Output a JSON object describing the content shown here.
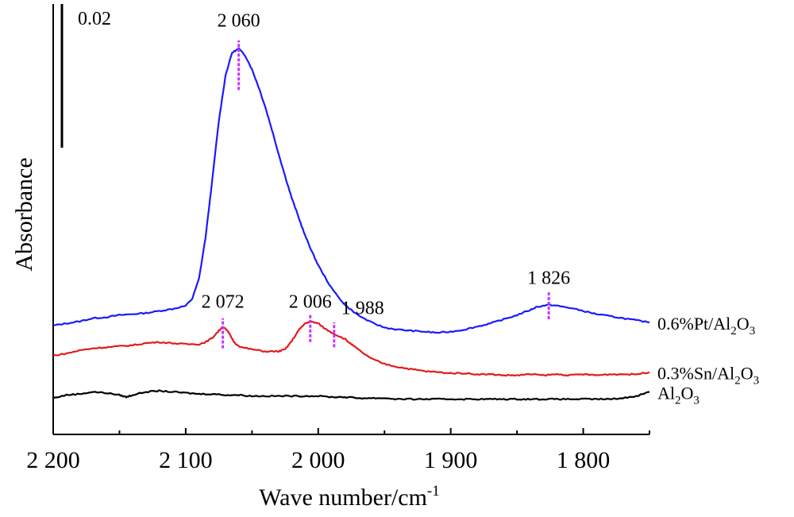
{
  "chart_data": {
    "type": "line",
    "xlabel": "Wave number/cm",
    "xlabel_sup": "-1",
    "ylabel": "Absorbance",
    "xlim": [
      2200,
      1750
    ],
    "x_reversed": true,
    "x_ticks": [
      2200,
      2100,
      2000,
      1900,
      1800
    ],
    "x_tick_labels": [
      "2 200",
      "2 100",
      "2 000",
      "1 900",
      "1 800"
    ],
    "scale_bar_label": "0.02",
    "legend_placement": "right-inline",
    "series": [
      {
        "name_parts": [
          "0.6%Pt/Al",
          "2",
          "O",
          "3"
        ],
        "color": "#1a1aff",
        "points": [
          [
            2200,
            0.075
          ],
          [
            2190,
            0.077
          ],
          [
            2180,
            0.079
          ],
          [
            2170,
            0.082
          ],
          [
            2160,
            0.083
          ],
          [
            2150,
            0.085
          ],
          [
            2140,
            0.086
          ],
          [
            2130,
            0.087
          ],
          [
            2120,
            0.089
          ],
          [
            2110,
            0.091
          ],
          [
            2100,
            0.094
          ],
          [
            2095,
            0.101
          ],
          [
            2090,
            0.12
          ],
          [
            2085,
            0.16
          ],
          [
            2080,
            0.215
          ],
          [
            2075,
            0.272
          ],
          [
            2070,
            0.316
          ],
          [
            2065,
            0.338
          ],
          [
            2060,
            0.342
          ],
          [
            2055,
            0.335
          ],
          [
            2050,
            0.322
          ],
          [
            2045,
            0.305
          ],
          [
            2040,
            0.286
          ],
          [
            2035,
            0.264
          ],
          [
            2030,
            0.241
          ],
          [
            2025,
            0.219
          ],
          [
            2020,
            0.198
          ],
          [
            2015,
            0.18
          ],
          [
            2010,
            0.162
          ],
          [
            2005,
            0.147
          ],
          [
            2000,
            0.133
          ],
          [
            1990,
            0.111
          ],
          [
            1980,
            0.095
          ],
          [
            1970,
            0.085
          ],
          [
            1960,
            0.078
          ],
          [
            1950,
            0.073
          ],
          [
            1940,
            0.071
          ],
          [
            1930,
            0.07
          ],
          [
            1920,
            0.069
          ],
          [
            1910,
            0.068
          ],
          [
            1900,
            0.069
          ],
          [
            1890,
            0.071
          ],
          [
            1880,
            0.074
          ],
          [
            1870,
            0.077
          ],
          [
            1860,
            0.081
          ],
          [
            1850,
            0.085
          ],
          [
            1840,
            0.09
          ],
          [
            1835,
            0.093
          ],
          [
            1826,
            0.095
          ],
          [
            1820,
            0.094
          ],
          [
            1810,
            0.092
          ],
          [
            1800,
            0.089
          ],
          [
            1790,
            0.086
          ],
          [
            1780,
            0.084
          ],
          [
            1770,
            0.082
          ],
          [
            1760,
            0.08
          ],
          [
            1750,
            0.078
          ]
        ]
      },
      {
        "name_parts": [
          "0.3%Sn/Al",
          "2",
          "O",
          "3"
        ],
        "color": "#e31a1c",
        "points": [
          [
            2200,
            0.046
          ],
          [
            2190,
            0.048
          ],
          [
            2180,
            0.051
          ],
          [
            2170,
            0.053
          ],
          [
            2160,
            0.054
          ],
          [
            2150,
            0.055
          ],
          [
            2140,
            0.056
          ],
          [
            2130,
            0.058
          ],
          [
            2120,
            0.059
          ],
          [
            2110,
            0.058
          ],
          [
            2100,
            0.057
          ],
          [
            2090,
            0.057
          ],
          [
            2085,
            0.059
          ],
          [
            2080,
            0.063
          ],
          [
            2075,
            0.07
          ],
          [
            2072,
            0.074
          ],
          [
            2068,
            0.069
          ],
          [
            2063,
            0.058
          ],
          [
            2058,
            0.054
          ],
          [
            2050,
            0.052
          ],
          [
            2040,
            0.05
          ],
          [
            2030,
            0.05
          ],
          [
            2025,
            0.052
          ],
          [
            2020,
            0.06
          ],
          [
            2015,
            0.07
          ],
          [
            2010,
            0.077
          ],
          [
            2006,
            0.079
          ],
          [
            2000,
            0.077
          ],
          [
            1995,
            0.072
          ],
          [
            1988,
            0.067
          ],
          [
            1980,
            0.062
          ],
          [
            1975,
            0.057
          ],
          [
            1970,
            0.052
          ],
          [
            1960,
            0.043
          ],
          [
            1950,
            0.038
          ],
          [
            1940,
            0.035
          ],
          [
            1930,
            0.033
          ],
          [
            1920,
            0.031
          ],
          [
            1910,
            0.03
          ],
          [
            1900,
            0.029
          ],
          [
            1890,
            0.029
          ],
          [
            1880,
            0.028
          ],
          [
            1870,
            0.028
          ],
          [
            1860,
            0.027
          ],
          [
            1850,
            0.027
          ],
          [
            1840,
            0.028
          ],
          [
            1830,
            0.027
          ],
          [
            1820,
            0.028
          ],
          [
            1810,
            0.027
          ],
          [
            1800,
            0.028
          ],
          [
            1790,
            0.027
          ],
          [
            1780,
            0.028
          ],
          [
            1770,
            0.028
          ],
          [
            1760,
            0.028
          ],
          [
            1750,
            0.03
          ]
        ]
      },
      {
        "name_parts": [
          "Al",
          "2",
          "O",
          "3"
        ],
        "color": "#000000",
        "points": [
          [
            2200,
            0.005
          ],
          [
            2190,
            0.008
          ],
          [
            2180,
            0.009
          ],
          [
            2170,
            0.011
          ],
          [
            2160,
            0.01
          ],
          [
            2150,
            0.008
          ],
          [
            2145,
            0.006
          ],
          [
            2140,
            0.008
          ],
          [
            2130,
            0.011
          ],
          [
            2120,
            0.012
          ],
          [
            2110,
            0.011
          ],
          [
            2100,
            0.01
          ],
          [
            2090,
            0.009
          ],
          [
            2080,
            0.009
          ],
          [
            2070,
            0.008
          ],
          [
            2060,
            0.008
          ],
          [
            2050,
            0.007
          ],
          [
            2040,
            0.007
          ],
          [
            2030,
            0.007
          ],
          [
            2020,
            0.007
          ],
          [
            2010,
            0.007
          ],
          [
            2000,
            0.007
          ],
          [
            1990,
            0.006
          ],
          [
            1980,
            0.006
          ],
          [
            1970,
            0.005
          ],
          [
            1960,
            0.005
          ],
          [
            1950,
            0.005
          ],
          [
            1940,
            0.004
          ],
          [
            1930,
            0.004
          ],
          [
            1920,
            0.004
          ],
          [
            1910,
            0.004
          ],
          [
            1900,
            0.004
          ],
          [
            1890,
            0.004
          ],
          [
            1880,
            0.004
          ],
          [
            1870,
            0.004
          ],
          [
            1860,
            0.004
          ],
          [
            1850,
            0.004
          ],
          [
            1840,
            0.004
          ],
          [
            1830,
            0.004
          ],
          [
            1820,
            0.004
          ],
          [
            1810,
            0.004
          ],
          [
            1800,
            0.004
          ],
          [
            1790,
            0.004
          ],
          [
            1780,
            0.004
          ],
          [
            1770,
            0.005
          ],
          [
            1760,
            0.007
          ],
          [
            1750,
            0.011
          ]
        ]
      }
    ],
    "peak_annotations": [
      {
        "x": 2060,
        "label": "2 060",
        "y_low": 0.302,
        "y_high": 0.35,
        "text_y": 0.363
      },
      {
        "x": 1826,
        "label": "1 826",
        "y_low": 0.081,
        "y_high": 0.107,
        "text_y": 0.115
      },
      {
        "x": 2072,
        "label": "2 072",
        "y_low": 0.053,
        "y_high": 0.082,
        "text_y": 0.092
      },
      {
        "x": 2006,
        "label": "2 006",
        "y_low": 0.059,
        "y_high": 0.086,
        "text_y": 0.092
      },
      {
        "x": 1988,
        "label": "1 988",
        "y_low": 0.054,
        "y_high": 0.078,
        "text_y": 0.086
      }
    ],
    "annotation_color": "#cc33ff"
  }
}
